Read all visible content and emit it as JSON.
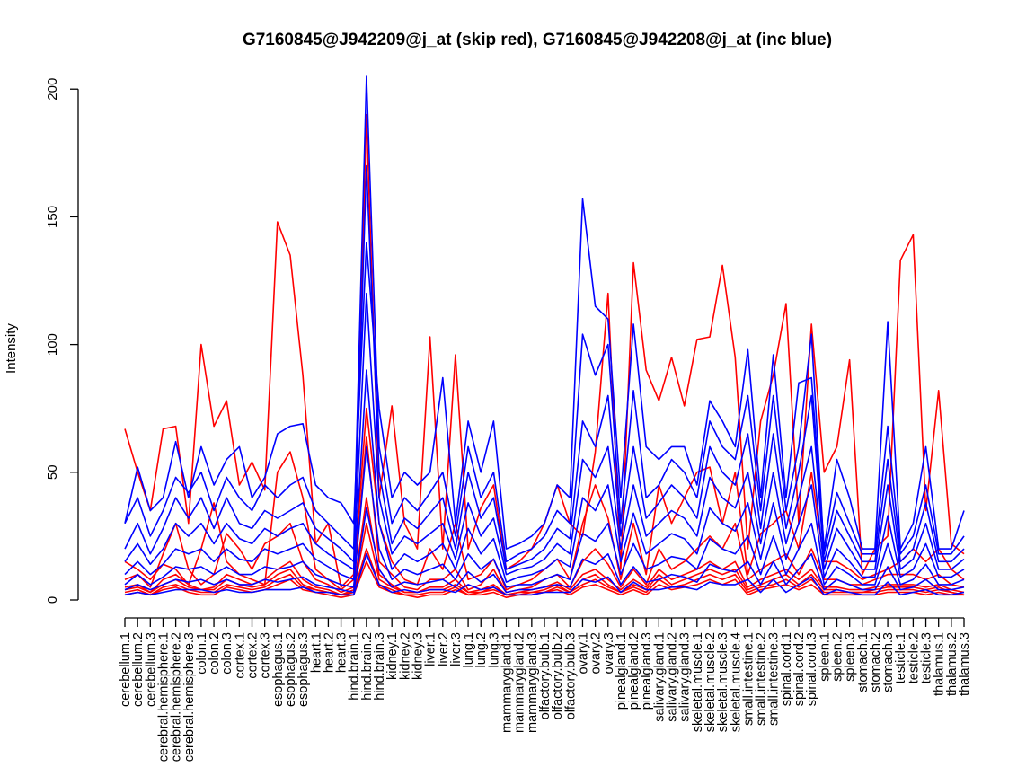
{
  "chart_data": {
    "type": "line",
    "title": "G7160845@J942209@j_at (skip red), G7160845@J942208@j_at (inc blue)",
    "xlabel": "",
    "ylabel": "Intensity",
    "ylim": [
      0,
      205
    ],
    "yticks": [
      0,
      50,
      100,
      150,
      200
    ],
    "grid": false,
    "legend": "none",
    "colors": {
      "skip": "#ff0000",
      "inc": "#0000ff"
    },
    "categories": [
      "cerebellum.1",
      "cerebellum.2",
      "cerebellum.3",
      "cerebral.hemisphere.1",
      "cerebral.hemisphere.2",
      "cerebral.hemisphere.3",
      "colon.1",
      "colon.2",
      "colon.3",
      "cortex.1",
      "cortex.2",
      "cortex.3",
      "esophagus.1",
      "esophagus.2",
      "esophagus.3",
      "heart.1",
      "heart.2",
      "heart.3",
      "hind.brain.1",
      "hind.brain.2",
      "hind.brain.3",
      "kidney.1",
      "kidney.2",
      "kidney.3",
      "liver.1",
      "liver.2",
      "liver.3",
      "lung.1",
      "lung.2",
      "lung.3",
      "mammarygland.1",
      "mammarygland.2",
      "mammarygland.3",
      "olfactory.bulb.1",
      "olfactory.bulb.2",
      "olfactory.bulb.3",
      "ovary.1",
      "ovary.2",
      "ovary.3",
      "pinealgland.1",
      "pinealgland.2",
      "pinealgland.3",
      "salivary.gland.1",
      "salivary.gland.2",
      "salivary.gland.3",
      "skeletal.muscle.1",
      "skeletal.muscle.2",
      "skeletal.muscle.3",
      "skeletal.muscle.4",
      "small.intestine.1",
      "small.intestine.2",
      "small.intestine.3",
      "spinal.cord.1",
      "spinal.cord.2",
      "spinal.cord.3",
      "spleen.1",
      "spleen.2",
      "spleen.3",
      "stomach.1",
      "stomach.2",
      "stomach.3",
      "testicle.1",
      "testicle.2",
      "testicle.3",
      "thalamus.1",
      "thalamus.2",
      "thalamus.3"
    ],
    "series": [
      {
        "group": "skip",
        "values": [
          67,
          50,
          35,
          67,
          68,
          30,
          100,
          68,
          78,
          45,
          54,
          43,
          148,
          135,
          88,
          22,
          30,
          5,
          10,
          190,
          40,
          76,
          30,
          20,
          103,
          20,
          96,
          20,
          36,
          45,
          12,
          15,
          20,
          30,
          45,
          30,
          25,
          58,
          120,
          12,
          132,
          90,
          78,
          95,
          76,
          102,
          103,
          131,
          95,
          20,
          70,
          88,
          116,
          30,
          108,
          50,
          60,
          94,
          10,
          20,
          25,
          133,
          143,
          35,
          82,
          22,
          18
        ]
      },
      {
        "group": "skip",
        "values": [
          15,
          12,
          8,
          14,
          12,
          6,
          20,
          38,
          15,
          10,
          8,
          6,
          50,
          58,
          40,
          12,
          8,
          4,
          8,
          75,
          30,
          15,
          8,
          6,
          20,
          12,
          30,
          8,
          10,
          16,
          4,
          6,
          8,
          12,
          16,
          8,
          30,
          45,
          32,
          8,
          30,
          10,
          45,
          30,
          40,
          50,
          52,
          30,
          50,
          10,
          26,
          30,
          35,
          20,
          50,
          15,
          15,
          12,
          8,
          10,
          12,
          15,
          20,
          15,
          20,
          12,
          8
        ]
      },
      {
        "group": "skip",
        "values": [
          8,
          10,
          5,
          18,
          30,
          12,
          6,
          10,
          26,
          20,
          12,
          22,
          25,
          30,
          15,
          8,
          6,
          3,
          5,
          64,
          15,
          10,
          5,
          4,
          8,
          8,
          12,
          4,
          6,
          12,
          3,
          4,
          5,
          8,
          10,
          5,
          15,
          20,
          14,
          5,
          12,
          6,
          20,
          12,
          15,
          20,
          25,
          20,
          30,
          8,
          12,
          15,
          18,
          10,
          20,
          8,
          8,
          6,
          6,
          8,
          10,
          10,
          10,
          8,
          10,
          6,
          5
        ]
      },
      {
        "group": "skip",
        "values": [
          5,
          6,
          3,
          8,
          10,
          6,
          4,
          5,
          10,
          8,
          6,
          8,
          12,
          15,
          8,
          5,
          4,
          2,
          4,
          40,
          10,
          6,
          3,
          3,
          5,
          5,
          8,
          3,
          4,
          6,
          2,
          3,
          4,
          5,
          7,
          4,
          10,
          12,
          8,
          4,
          8,
          5,
          12,
          8,
          10,
          12,
          15,
          12,
          15,
          5,
          8,
          10,
          12,
          8,
          12,
          5,
          5,
          4,
          4,
          5,
          6,
          6,
          6,
          5,
          6,
          4,
          3
        ]
      },
      {
        "group": "skip",
        "values": [
          3,
          4,
          2,
          5,
          6,
          4,
          3,
          3,
          6,
          5,
          4,
          5,
          8,
          10,
          5,
          4,
          3,
          2,
          3,
          20,
          6,
          4,
          2,
          2,
          3,
          3,
          5,
          2,
          3,
          4,
          2,
          2,
          3,
          3,
          5,
          3,
          6,
          8,
          5,
          3,
          5,
          3,
          8,
          5,
          6,
          8,
          10,
          8,
          10,
          3,
          5,
          6,
          8,
          5,
          8,
          3,
          3,
          3,
          3,
          3,
          4,
          4,
          4,
          3,
          4,
          3,
          2
        ]
      },
      {
        "group": "skip",
        "values": [
          4,
          5,
          3,
          6,
          8,
          5,
          4,
          4,
          8,
          6,
          5,
          6,
          10,
          12,
          6,
          4,
          3,
          2,
          3,
          30,
          8,
          5,
          3,
          3,
          4,
          4,
          6,
          3,
          3,
          5,
          2,
          3,
          3,
          4,
          6,
          3,
          8,
          10,
          6,
          3,
          6,
          4,
          10,
          6,
          8,
          10,
          12,
          10,
          12,
          4,
          6,
          8,
          10,
          6,
          10,
          4,
          4,
          3,
          3,
          4,
          5,
          5,
          5,
          4,
          5,
          3,
          2
        ]
      },
      {
        "group": "skip",
        "values": [
          2,
          3,
          2,
          4,
          5,
          3,
          2,
          2,
          5,
          4,
          3,
          4,
          6,
          8,
          4,
          3,
          2,
          1,
          2,
          15,
          5,
          3,
          2,
          1,
          2,
          2,
          4,
          2,
          2,
          3,
          1,
          2,
          2,
          3,
          4,
          2,
          5,
          6,
          4,
          2,
          4,
          2,
          6,
          4,
          5,
          6,
          8,
          6,
          8,
          2,
          4,
          5,
          6,
          4,
          6,
          2,
          2,
          2,
          2,
          2,
          3,
          3,
          3,
          2,
          3,
          2,
          2
        ]
      },
      {
        "group": "inc",
        "values": [
          30,
          52,
          35,
          40,
          62,
          40,
          60,
          45,
          55,
          60,
          40,
          48,
          65,
          68,
          69,
          45,
          40,
          38,
          30,
          140,
          75,
          40,
          50,
          45,
          50,
          87,
          30,
          70,
          50,
          70,
          20,
          22,
          25,
          30,
          45,
          40,
          157,
          115,
          110,
          40,
          108,
          60,
          55,
          60,
          60,
          45,
          78,
          70,
          60,
          98,
          40,
          96,
          40,
          85,
          87,
          20,
          55,
          40,
          20,
          20,
          109,
          20,
          30,
          60,
          20,
          20,
          35
        ]
      },
      {
        "group": "inc",
        "values": [
          30,
          40,
          25,
          35,
          48,
          42,
          50,
          35,
          48,
          40,
          35,
          45,
          40,
          45,
          48,
          35,
          30,
          25,
          20,
          205,
          60,
          30,
          40,
          35,
          42,
          50,
          25,
          60,
          40,
          50,
          15,
          18,
          20,
          25,
          35,
          30,
          104,
          88,
          100,
          30,
          82,
          40,
          45,
          55,
          50,
          40,
          70,
          60,
          55,
          80,
          35,
          80,
          35,
          60,
          104,
          18,
          42,
          30,
          18,
          18,
          68,
          18,
          25,
          45,
          18,
          18,
          25
        ]
      },
      {
        "group": "inc",
        "values": [
          20,
          30,
          18,
          28,
          40,
          32,
          40,
          28,
          40,
          30,
          28,
          35,
          32,
          35,
          38,
          28,
          24,
          20,
          15,
          170,
          50,
          22,
          32,
          28,
          34,
          40,
          20,
          50,
          32,
          40,
          12,
          14,
          16,
          20,
          28,
          24,
          70,
          60,
          80,
          25,
          60,
          32,
          38,
          45,
          40,
          32,
          60,
          50,
          45,
          65,
          28,
          65,
          28,
          50,
          80,
          15,
          35,
          25,
          15,
          15,
          55,
          15,
          20,
          38,
          15,
          15,
          20
        ]
      },
      {
        "group": "inc",
        "values": [
          15,
          22,
          14,
          20,
          30,
          25,
          30,
          22,
          30,
          24,
          22,
          28,
          25,
          28,
          30,
          22,
          18,
          15,
          12,
          120,
          40,
          18,
          25,
          22,
          26,
          30,
          16,
          38,
          25,
          32,
          10,
          12,
          13,
          16,
          22,
          18,
          55,
          48,
          60,
          20,
          45,
          25,
          30,
          35,
          32,
          25,
          48,
          40,
          36,
          50,
          22,
          50,
          22,
          40,
          60,
          12,
          28,
          20,
          12,
          12,
          45,
          12,
          16,
          30,
          12,
          12,
          16
        ]
      },
      {
        "group": "inc",
        "values": [
          10,
          15,
          10,
          14,
          20,
          18,
          20,
          15,
          20,
          16,
          15,
          20,
          18,
          20,
          22,
          16,
          13,
          10,
          8,
          90,
          30,
          12,
          18,
          15,
          18,
          22,
          12,
          28,
          18,
          24,
          7,
          9,
          10,
          12,
          16,
          13,
          40,
          35,
          45,
          15,
          34,
          18,
          22,
          26,
          24,
          18,
          36,
          30,
          27,
          38,
          16,
          38,
          16,
          30,
          45,
          9,
          20,
          15,
          9,
          9,
          33,
          9,
          12,
          22,
          9,
          9,
          12
        ]
      },
      {
        "group": "inc",
        "values": [
          6,
          10,
          6,
          9,
          13,
          12,
          13,
          10,
          13,
          10,
          10,
          13,
          12,
          13,
          15,
          10,
          8,
          6,
          5,
          60,
          20,
          8,
          12,
          10,
          12,
          14,
          8,
          18,
          12,
          16,
          5,
          6,
          6,
          8,
          10,
          8,
          26,
          23,
          30,
          10,
          22,
          12,
          14,
          17,
          16,
          12,
          24,
          20,
          18,
          25,
          10,
          25,
          10,
          20,
          30,
          6,
          13,
          10,
          6,
          6,
          22,
          6,
          8,
          14,
          6,
          6,
          8
        ]
      },
      {
        "group": "inc",
        "values": [
          4,
          6,
          4,
          6,
          8,
          7,
          8,
          6,
          8,
          6,
          6,
          8,
          7,
          8,
          9,
          6,
          5,
          4,
          3,
          36,
          12,
          5,
          7,
          6,
          7,
          8,
          5,
          11,
          7,
          10,
          3,
          4,
          4,
          5,
          6,
          5,
          16,
          14,
          18,
          6,
          13,
          7,
          8,
          10,
          9,
          7,
          14,
          12,
          11,
          15,
          6,
          15,
          6,
          12,
          18,
          4,
          8,
          6,
          4,
          4,
          13,
          4,
          5,
          8,
          4,
          4,
          5
        ]
      },
      {
        "group": "inc",
        "values": [
          2,
          3,
          2,
          3,
          4,
          4,
          4,
          3,
          4,
          3,
          3,
          4,
          4,
          4,
          5,
          3,
          3,
          2,
          2,
          18,
          6,
          3,
          4,
          3,
          4,
          4,
          3,
          6,
          4,
          5,
          2,
          2,
          2,
          3,
          3,
          3,
          8,
          7,
          9,
          3,
          7,
          4,
          4,
          5,
          5,
          4,
          7,
          6,
          6,
          8,
          3,
          8,
          3,
          6,
          9,
          2,
          4,
          3,
          2,
          2,
          7,
          2,
          3,
          4,
          2,
          2,
          3
        ]
      }
    ]
  }
}
